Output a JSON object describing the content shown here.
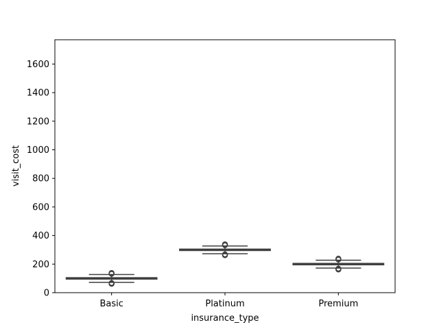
{
  "chart_data": {
    "type": "box",
    "title": "",
    "xlabel": "insurance_type",
    "ylabel": "visit_cost",
    "ylim": [
      0,
      1770
    ],
    "yticks": [
      0,
      200,
      400,
      600,
      800,
      1000,
      1200,
      1400,
      1600
    ],
    "grid": false,
    "categories": [
      "Basic",
      "Platinum",
      "Premium"
    ],
    "boxes": [
      {
        "category": "Basic",
        "whisker_low": 72,
        "q1": 95,
        "median": 100,
        "q3": 105,
        "whisker_high": 127,
        "outliers": [
          62,
          65,
          68,
          132,
          135,
          138
        ]
      },
      {
        "category": "Platinum",
        "whisker_low": 272,
        "q1": 295,
        "median": 300,
        "q3": 305,
        "whisker_high": 327,
        "outliers": [
          262,
          265,
          268,
          332,
          335,
          338
        ]
      },
      {
        "category": "Premium",
        "whisker_low": 172,
        "q1": 195,
        "median": 200,
        "q3": 205,
        "whisker_high": 227,
        "outliers": [
          162,
          165,
          168,
          232,
          235,
          238
        ]
      }
    ],
    "colors": {
      "box_fill": "#3a923a",
      "box_edge": "#3f3f3f",
      "axis": "#000000"
    }
  }
}
